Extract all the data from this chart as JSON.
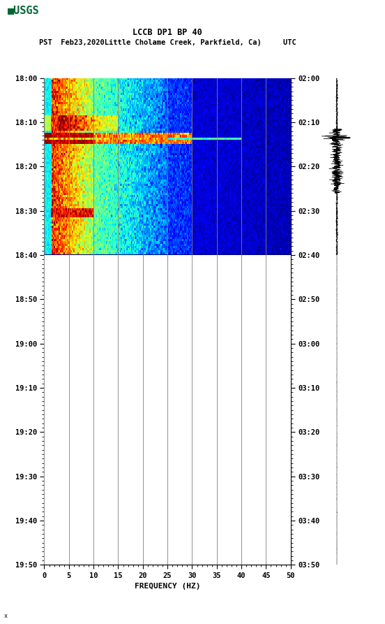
{
  "title_line1": "LCCB DP1 BP 40",
  "title_line2": "PST  Feb23,2020Little Cholame Creek, Parkfield, Ca)     UTC",
  "xlabel": "FREQUENCY (HZ)",
  "freq_min": 0,
  "freq_max": 50,
  "pst_ticks": [
    "18:00",
    "18:10",
    "18:20",
    "18:30",
    "18:40",
    "18:50",
    "19:00",
    "19:10",
    "19:20",
    "19:30",
    "19:40",
    "19:50"
  ],
  "utc_ticks": [
    "02:00",
    "02:10",
    "02:20",
    "02:30",
    "02:40",
    "02:50",
    "03:00",
    "03:10",
    "03:20",
    "03:30",
    "03:40",
    "03:50"
  ],
  "freq_ticks": [
    0,
    5,
    10,
    15,
    20,
    25,
    30,
    35,
    40,
    45,
    50
  ],
  "grid_color": "#808080",
  "bg_color": "#ffffff",
  "usgs_green": "#006633",
  "tick_label_fontsize": 7.5,
  "title_fontsize": 8.5,
  "n_time": 220,
  "n_freq": 250,
  "active_rows": 80,
  "total_minutes": 110,
  "active_minutes": 40
}
